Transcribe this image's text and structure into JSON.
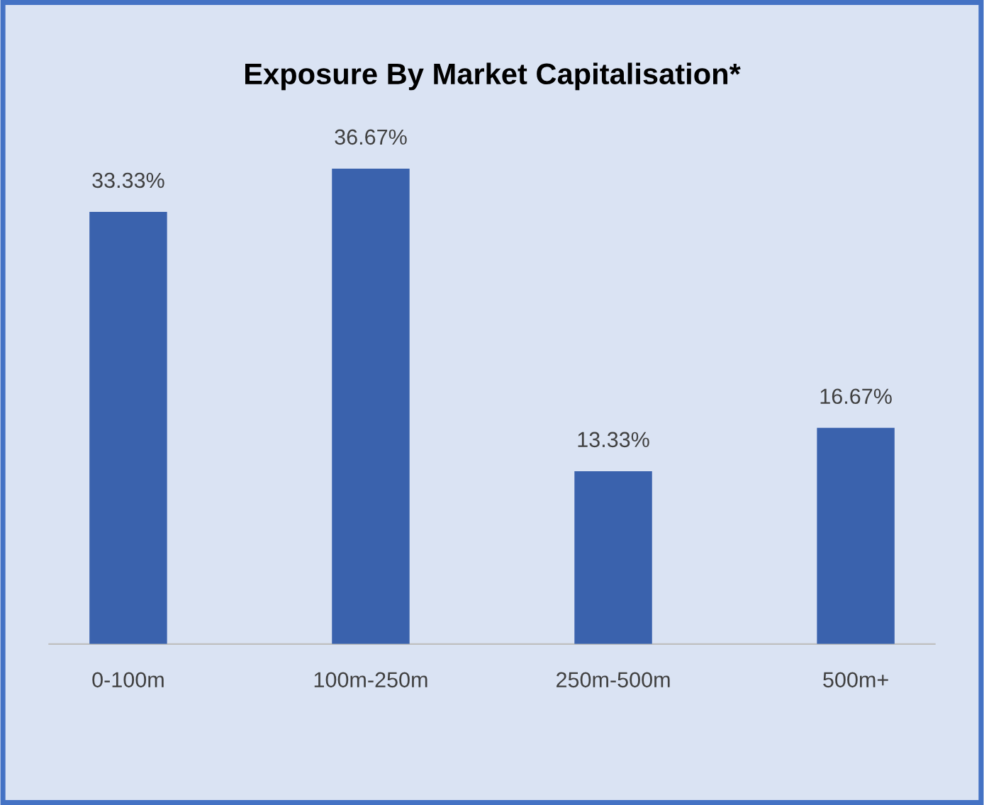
{
  "chart_data": {
    "type": "bar",
    "title": "Exposure By Market Capitalisation*",
    "categories": [
      "0-100m",
      "100m-250m",
      "250m-500m",
      "500m+"
    ],
    "values": [
      33.33,
      36.67,
      13.33,
      16.67
    ],
    "value_labels": [
      "33.33%",
      "36.67%",
      "13.33%",
      "16.67%"
    ],
    "color": "#3a62ad"
  }
}
